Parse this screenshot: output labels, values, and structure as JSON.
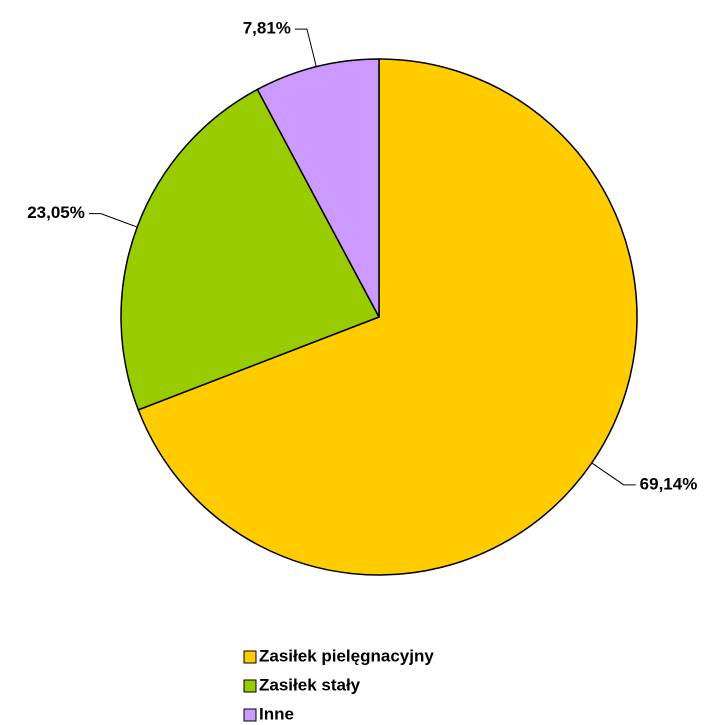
{
  "chart_data": {
    "type": "pie",
    "categories": [
      "Zasiłek pielęgnacyjny",
      "Zasiłek stały",
      "Inne"
    ],
    "values": [
      69.14,
      23.05,
      7.81
    ],
    "value_labels": [
      "69,14%",
      "23,05%",
      "7,81%"
    ],
    "colors": [
      "#ffcc00",
      "#99cc00",
      "#cc99ff"
    ],
    "legend": "bottom"
  }
}
